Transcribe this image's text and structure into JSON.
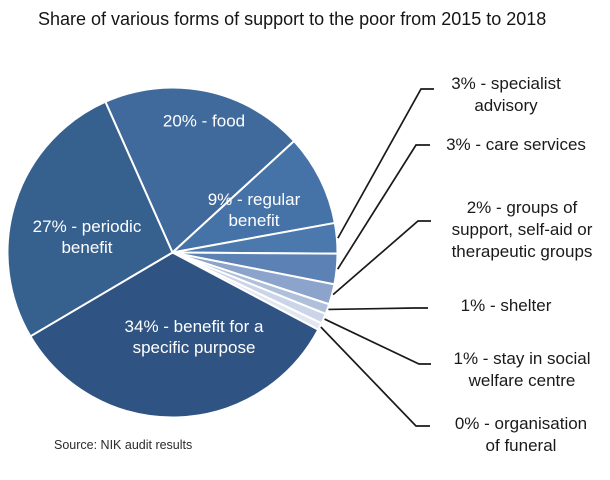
{
  "title": "Share of various forms of support to the poor from 2015 to 2018",
  "source": "Source: NIK audit results",
  "chart_data": {
    "type": "pie",
    "title": "Share of various forms of support to the poor from 2015 to 2018",
    "source_note": "Source: NIK audit results",
    "legend_position": "none",
    "direction": "clockwise",
    "start_angle_deg": 114,
    "separator_color": "#ffffff",
    "callout_line_color": "#1a1a1a",
    "slices": [
      {
        "name": "food",
        "value": 20,
        "label": "20% - food",
        "label_lines": [
          "20% - food"
        ],
        "color": "#40699C",
        "label_placement": "inside"
      },
      {
        "name": "regular-benefit",
        "value": 9,
        "label": "9% - regular benefit",
        "label_lines": [
          "9% - regular",
          "benefit"
        ],
        "color": "#4573A7",
        "label_placement": "inside"
      },
      {
        "name": "specialist-advisory",
        "value": 3,
        "label": "3% - specialist advisory",
        "label_lines": [
          "3% - specialist",
          "advisory"
        ],
        "color": "#4C79AD",
        "label_placement": "callout"
      },
      {
        "name": "care-services",
        "value": 3,
        "label": "3% - care services",
        "label_lines": [
          "3% - care services"
        ],
        "color": "#5C82B5",
        "label_placement": "callout"
      },
      {
        "name": "groups-of-support",
        "value": 2,
        "label": "2% - groups of support, self-aid or therapeutic groups",
        "label_lines": [
          "2% - groups of",
          "support, self-aid or",
          "therapeutic groups"
        ],
        "color": "#8CA3CC",
        "label_placement": "callout"
      },
      {
        "name": "shelter",
        "value": 1,
        "label": "1% - shelter",
        "label_lines": [
          "1% - shelter"
        ],
        "color": "#AFC0DB",
        "label_placement": "callout"
      },
      {
        "name": "stay-social-welfare",
        "value": 1,
        "label": "1% - stay in social welfare centre",
        "label_lines": [
          "1% - stay in social",
          "welfare centre"
        ],
        "color": "#CBD4E8",
        "label_placement": "callout"
      },
      {
        "name": "organisation-of-funeral",
        "value": 0,
        "label": "0% - organisation of funeral",
        "label_lines": [
          "0% - organisation",
          "of funeral"
        ],
        "color": "#E2E7F2",
        "label_placement": "callout"
      },
      {
        "name": "specific-purpose",
        "value": 34,
        "label": "34% - benefit for a specific purpose",
        "label_lines": [
          "34% - benefit for a",
          "specific purpose"
        ],
        "color": "#2F5382",
        "label_placement": "inside"
      },
      {
        "name": "periodic-benefit",
        "value": 27,
        "label": "27% - periodic benefit",
        "label_lines": [
          "27% - periodic",
          "benefit"
        ],
        "color": "#36618F",
        "label_placement": "inside"
      }
    ]
  }
}
